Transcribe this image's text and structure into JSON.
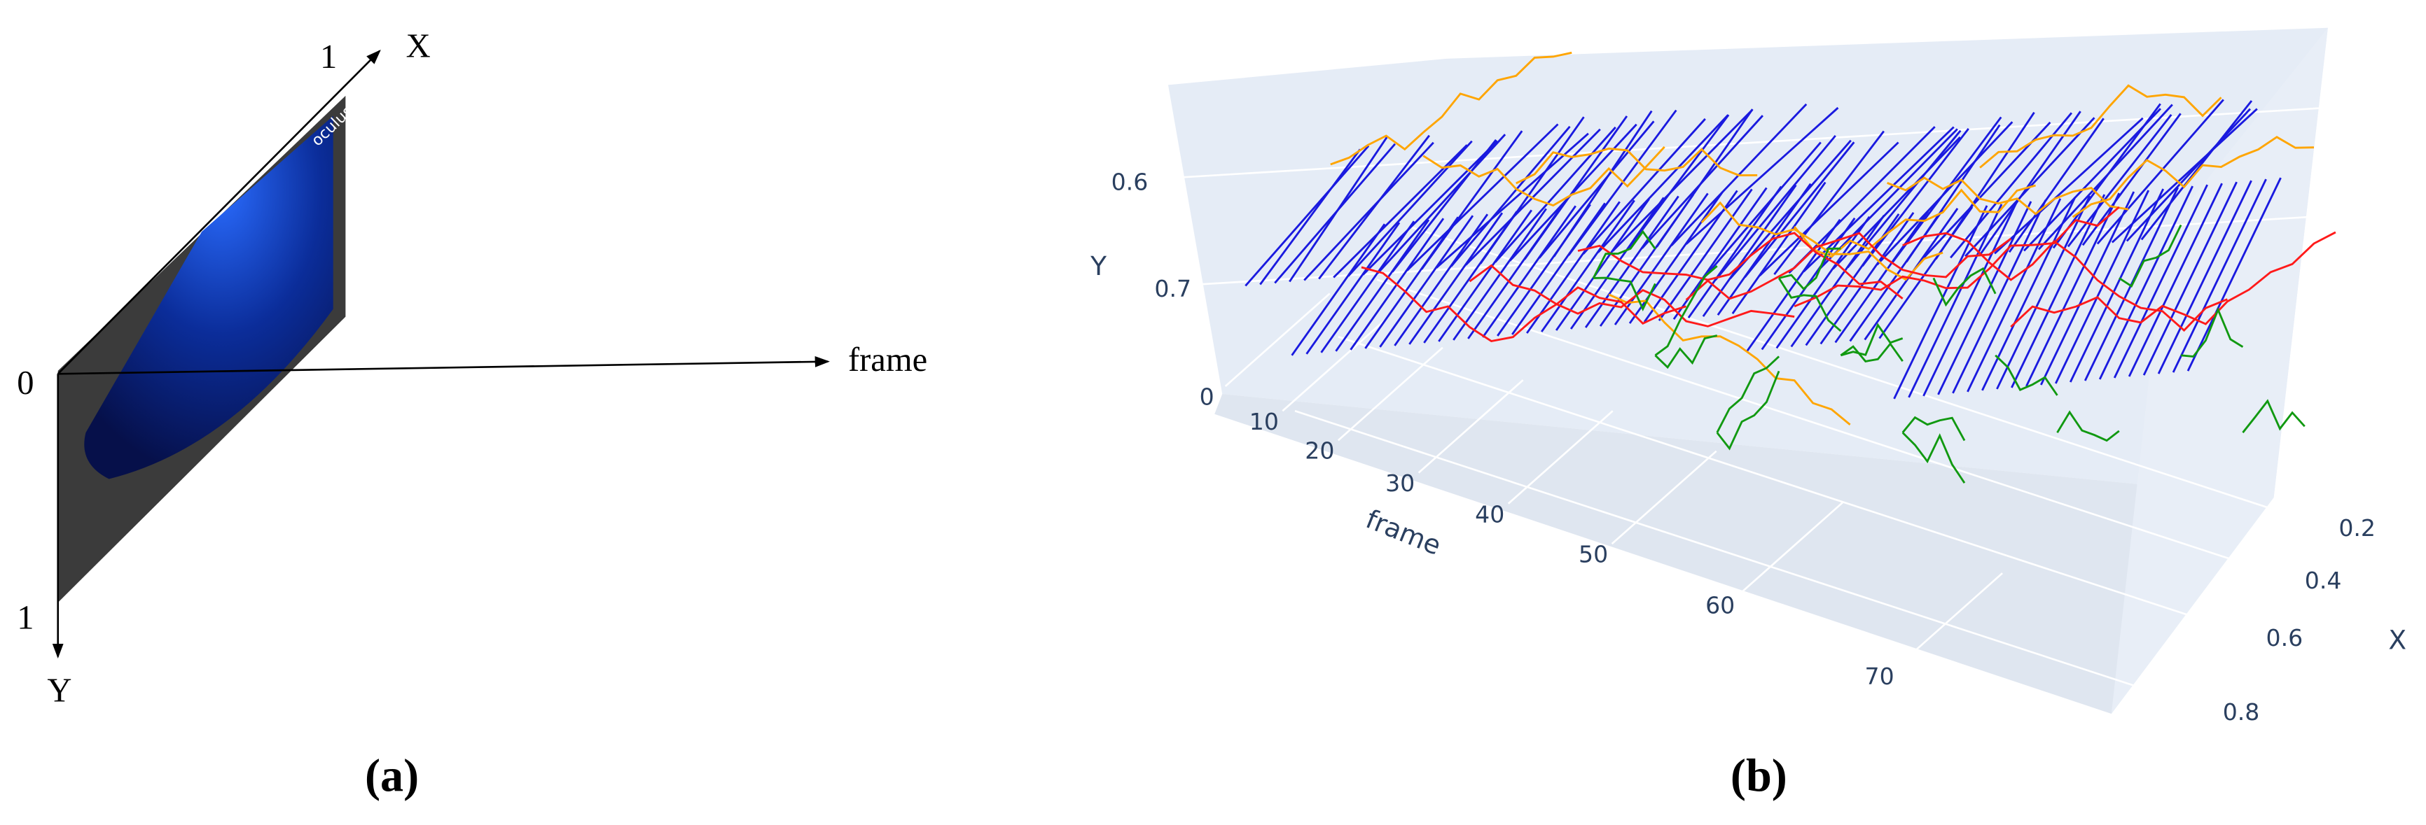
{
  "panel_a": {
    "label": "(a)",
    "tick_x_end": "1",
    "axis_x": "X",
    "tick_origin": "0",
    "axis_frame": "frame",
    "tick_y_end": "1",
    "axis_y": "Y",
    "logo": "oculus"
  },
  "panel_b": {
    "label": "(b)",
    "axis_y": "Y",
    "axis_frame": "frame",
    "axis_x": "X",
    "y_ticks": [
      "0.6",
      "0.7"
    ],
    "frame_ticks": [
      "0",
      "10",
      "20",
      "30",
      "40",
      "50",
      "60",
      "70"
    ],
    "x_ticks": [
      "0.2",
      "0.4",
      "0.6",
      "0.8"
    ]
  }
}
